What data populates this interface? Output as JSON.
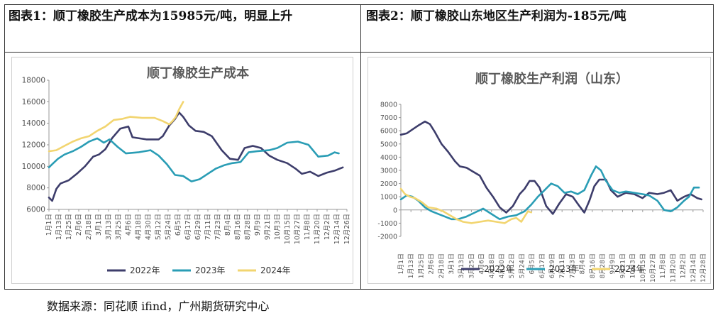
{
  "captions": {
    "left": "图表1：顺丁橡胶生产成本为15985元/吨，明显上升",
    "right": "图表2：顺丁橡胶山东地区生产利润为-185元/吨"
  },
  "source": "数据来源：同花顺 ifind，广州期货研究中心",
  "colors": {
    "s2022": "#3d3d6b",
    "s2023": "#2a9db5",
    "s2024": "#f2d570",
    "axis": "#999999",
    "text": "#555555"
  },
  "x_ticks": [
    "1月1日",
    "1月13日",
    "1月25日",
    "2月6日",
    "2月18日",
    "3月1日",
    "3月13日",
    "3月25日",
    "4月6日",
    "4月18日",
    "4月30日",
    "5月12日",
    "5月24日",
    "6月5日",
    "6月17日",
    "6月29日",
    "7月11日",
    "7月23日",
    "8月4日",
    "8月16日",
    "8月28日",
    "9月9日",
    "9月21日",
    "10月3日",
    "10月15日",
    "10月27日",
    "11月8日",
    "11月20日",
    "12月2日",
    "12月14日",
    "12月26日"
  ],
  "x_ticks_right": [
    "1月1日",
    "1月13日",
    "1月25日",
    "2月6日",
    "2月18日",
    "3月1日",
    "3月13日",
    "3月25日",
    "4月6日",
    "4月18日",
    "4月30日",
    "5月12日",
    "5月24日",
    "6月5日",
    "6月17日",
    "6月29日",
    "7月11日",
    "7月23日",
    "8月4日",
    "8月16日",
    "8月28日",
    "9月9日",
    "9月21日",
    "10月3日",
    "10月15日",
    "10月27日",
    "11月8日",
    "11月20日",
    "12月2日",
    "12月14日",
    "12月28日"
  ],
  "chart_data": [
    {
      "type": "line",
      "title": "顺丁橡胶生产成本",
      "ylim": [
        6000,
        18000
      ],
      "y_ticks": [
        6000,
        8000,
        10000,
        12000,
        14000,
        16000,
        18000
      ],
      "x_unit": "day_of_year",
      "legend_position": "bottom",
      "series": [
        {
          "name": "2022年",
          "color": "#3d3d6b",
          "points": [
            [
              1,
              7100
            ],
            [
              5,
              6800
            ],
            [
              10,
              7900
            ],
            [
              15,
              8400
            ],
            [
              25,
              8700
            ],
            [
              35,
              9300
            ],
            [
              45,
              10000
            ],
            [
              55,
              10900
            ],
            [
              62,
              11100
            ],
            [
              70,
              11600
            ],
            [
              78,
              12600
            ],
            [
              88,
              13500
            ],
            [
              98,
              13700
            ],
            [
              103,
              12700
            ],
            [
              120,
              12500
            ],
            [
              135,
              12500
            ],
            [
              140,
              12800
            ],
            [
              148,
              13800
            ],
            [
              155,
              14400
            ],
            [
              160,
              15000
            ],
            [
              165,
              14600
            ],
            [
              172,
              13800
            ],
            [
              180,
              13300
            ],
            [
              190,
              13200
            ],
            [
              200,
              12800
            ],
            [
              212,
              11500
            ],
            [
              222,
              10700
            ],
            [
              232,
              10600
            ],
            [
              240,
              11700
            ],
            [
              250,
              11900
            ],
            [
              260,
              11700
            ],
            [
              270,
              11000
            ],
            [
              280,
              10600
            ],
            [
              292,
              10300
            ],
            [
              302,
              9800
            ],
            [
              310,
              9300
            ],
            [
              320,
              9500
            ],
            [
              330,
              9100
            ],
            [
              340,
              9400
            ],
            [
              350,
              9600
            ],
            [
              360,
              9900
            ]
          ]
        },
        {
          "name": "2023年",
          "color": "#2a9db5",
          "points": [
            [
              1,
              9900
            ],
            [
              5,
              10200
            ],
            [
              12,
              10700
            ],
            [
              20,
              11100
            ],
            [
              30,
              11400
            ],
            [
              40,
              11800
            ],
            [
              50,
              12300
            ],
            [
              60,
              12600
            ],
            [
              68,
              12200
            ],
            [
              75,
              12500
            ],
            [
              85,
              11800
            ],
            [
              95,
              11200
            ],
            [
              110,
              11300
            ],
            [
              125,
              11500
            ],
            [
              135,
              11000
            ],
            [
              145,
              10200
            ],
            [
              155,
              9200
            ],
            [
              165,
              9100
            ],
            [
              175,
              8600
            ],
            [
              185,
              8800
            ],
            [
              195,
              9300
            ],
            [
              205,
              9800
            ],
            [
              215,
              10100
            ],
            [
              225,
              10300
            ],
            [
              235,
              10400
            ],
            [
              245,
              11300
            ],
            [
              255,
              11400
            ],
            [
              270,
              11500
            ],
            [
              280,
              11700
            ],
            [
              292,
              12200
            ],
            [
              305,
              12300
            ],
            [
              318,
              12000
            ],
            [
              330,
              10900
            ],
            [
              342,
              11000
            ],
            [
              350,
              11300
            ],
            [
              355,
              11200
            ]
          ]
        },
        {
          "name": "2024年",
          "color": "#f2d570",
          "points": [
            [
              1,
              11400
            ],
            [
              10,
              11500
            ],
            [
              20,
              11900
            ],
            [
              30,
              12300
            ],
            [
              40,
              12600
            ],
            [
              50,
              12800
            ],
            [
              60,
              13300
            ],
            [
              70,
              13700
            ],
            [
              80,
              14300
            ],
            [
              90,
              14400
            ],
            [
              100,
              14600
            ],
            [
              115,
              14500
            ],
            [
              130,
              14500
            ],
            [
              140,
              14200
            ],
            [
              148,
              13900
            ],
            [
              152,
              14200
            ],
            [
              156,
              14600
            ],
            [
              160,
              15300
            ],
            [
              165,
              15990
            ]
          ]
        }
      ]
    },
    {
      "type": "line",
      "title": "顺丁橡胶生产利润（山东）",
      "ylim": [
        -2000,
        8000
      ],
      "y_ticks": [
        -2000,
        -1000,
        0,
        1000,
        2000,
        3000,
        4000,
        5000,
        6000,
        7000,
        8000
      ],
      "x_unit": "day_of_year",
      "legend_position": "bottom",
      "series": [
        {
          "name": "2022年",
          "color": "#3d3d6b",
          "points": [
            [
              1,
              5700
            ],
            [
              8,
              5800
            ],
            [
              15,
              6100
            ],
            [
              22,
              6400
            ],
            [
              30,
              6700
            ],
            [
              36,
              6500
            ],
            [
              42,
              5900
            ],
            [
              50,
              5000
            ],
            [
              58,
              4400
            ],
            [
              66,
              3700
            ],
            [
              72,
              3300
            ],
            [
              80,
              3200
            ],
            [
              88,
              2900
            ],
            [
              96,
              2600
            ],
            [
              104,
              1700
            ],
            [
              112,
              1000
            ],
            [
              120,
              200
            ],
            [
              128,
              -200
            ],
            [
              136,
              300
            ],
            [
              144,
              1200
            ],
            [
              150,
              1600
            ],
            [
              156,
              2200
            ],
            [
              162,
              2200
            ],
            [
              168,
              1700
            ],
            [
              176,
              300
            ],
            [
              184,
              -300
            ],
            [
              192,
              500
            ],
            [
              200,
              1200
            ],
            [
              208,
              1000
            ],
            [
              216,
              300
            ],
            [
              222,
              -200
            ],
            [
              228,
              700
            ],
            [
              234,
              1800
            ],
            [
              240,
              2300
            ],
            [
              248,
              2300
            ],
            [
              254,
              1500
            ],
            [
              262,
              1000
            ],
            [
              272,
              1300
            ],
            [
              282,
              1200
            ],
            [
              292,
              900
            ],
            [
              300,
              1300
            ],
            [
              310,
              1200
            ],
            [
              318,
              1300
            ],
            [
              326,
              1500
            ],
            [
              334,
              700
            ],
            [
              342,
              1000
            ],
            [
              350,
              1200
            ],
            [
              358,
              900
            ],
            [
              363,
              800
            ]
          ]
        },
        {
          "name": "2023年",
          "color": "#2a9db5",
          "points": [
            [
              1,
              800
            ],
            [
              8,
              1100
            ],
            [
              15,
              1000
            ],
            [
              22,
              700
            ],
            [
              30,
              200
            ],
            [
              38,
              -100
            ],
            [
              46,
              -300
            ],
            [
              54,
              -500
            ],
            [
              62,
              -700
            ],
            [
              70,
              -700
            ],
            [
              80,
              -500
            ],
            [
              90,
              -200
            ],
            [
              100,
              100
            ],
            [
              110,
              -300
            ],
            [
              120,
              -700
            ],
            [
              130,
              -500
            ],
            [
              140,
              -400
            ],
            [
              150,
              -100
            ],
            [
              158,
              400
            ],
            [
              166,
              1000
            ],
            [
              174,
              1500
            ],
            [
              182,
              2000
            ],
            [
              190,
              1800
            ],
            [
              198,
              1300
            ],
            [
              206,
              1400
            ],
            [
              214,
              1200
            ],
            [
              222,
              1500
            ],
            [
              230,
              2600
            ],
            [
              236,
              3300
            ],
            [
              242,
              3000
            ],
            [
              248,
              2200
            ],
            [
              256,
              1500
            ],
            [
              264,
              1300
            ],
            [
              272,
              1400
            ],
            [
              282,
              1300
            ],
            [
              292,
              1200
            ],
            [
              300,
              1100
            ],
            [
              310,
              700
            ],
            [
              318,
              0
            ],
            [
              326,
              -100
            ],
            [
              334,
              200
            ],
            [
              342,
              700
            ],
            [
              348,
              1000
            ],
            [
              354,
              1700
            ],
            [
              360,
              1700
            ]
          ]
        },
        {
          "name": "2024年",
          "color": "#f2d570",
          "points": [
            [
              1,
              1600
            ],
            [
              6,
              1200
            ],
            [
              12,
              1000
            ],
            [
              18,
              900
            ],
            [
              26,
              600
            ],
            [
              34,
              200
            ],
            [
              44,
              100
            ],
            [
              52,
              -100
            ],
            [
              60,
              -400
            ],
            [
              68,
              -700
            ],
            [
              76,
              -900
            ],
            [
              86,
              -1000
            ],
            [
              96,
              -900
            ],
            [
              106,
              -800
            ],
            [
              116,
              -900
            ],
            [
              126,
              -1000
            ],
            [
              134,
              -700
            ],
            [
              140,
              -600
            ],
            [
              146,
              -900
            ],
            [
              150,
              -500
            ],
            [
              154,
              -100
            ],
            [
              158,
              -185
            ]
          ]
        }
      ]
    }
  ]
}
